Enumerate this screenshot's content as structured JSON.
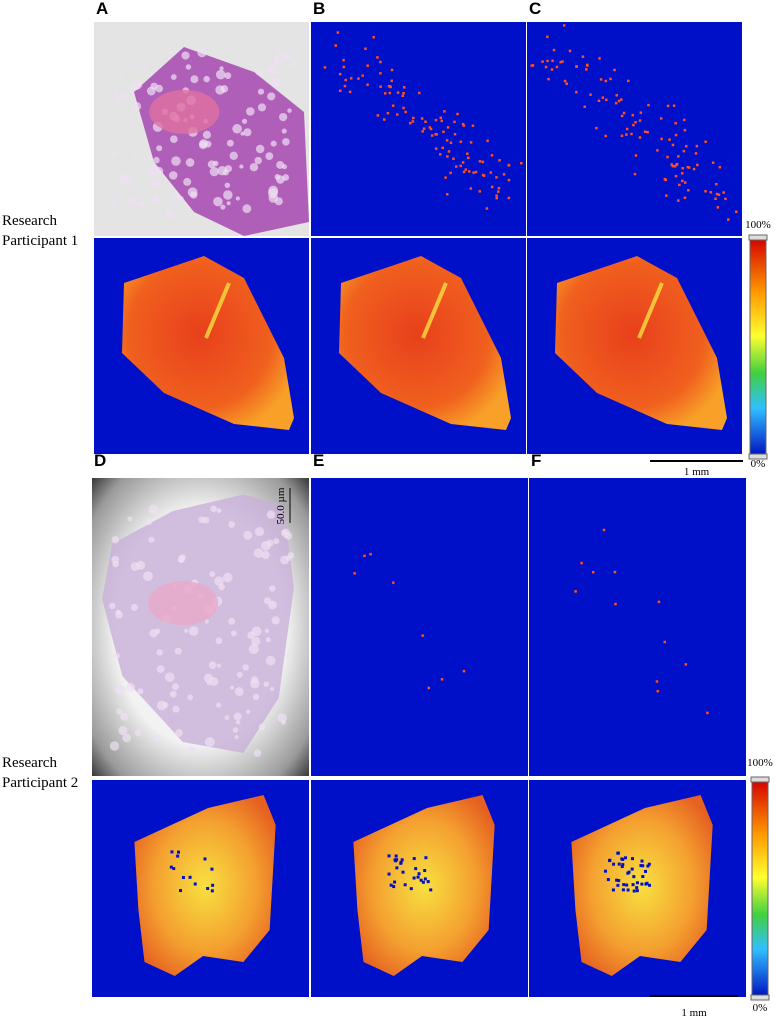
{
  "figure": {
    "groups": [
      {
        "participant": [
          "Research",
          "Participant 1"
        ],
        "panels": [
          "A",
          "B",
          "C"
        ],
        "colorbar": {
          "top": "100%",
          "bottom": "0%"
        },
        "scalebar": "1 mm",
        "inset_scale": null
      },
      {
        "participant": [
          "Research",
          "Participant 2"
        ],
        "panels": [
          "D",
          "E",
          "F"
        ],
        "colorbar": {
          "top": "100%",
          "bottom": "0%"
        },
        "scalebar": "1 mm",
        "inset_scale": "50.0 µm"
      }
    ]
  }
}
